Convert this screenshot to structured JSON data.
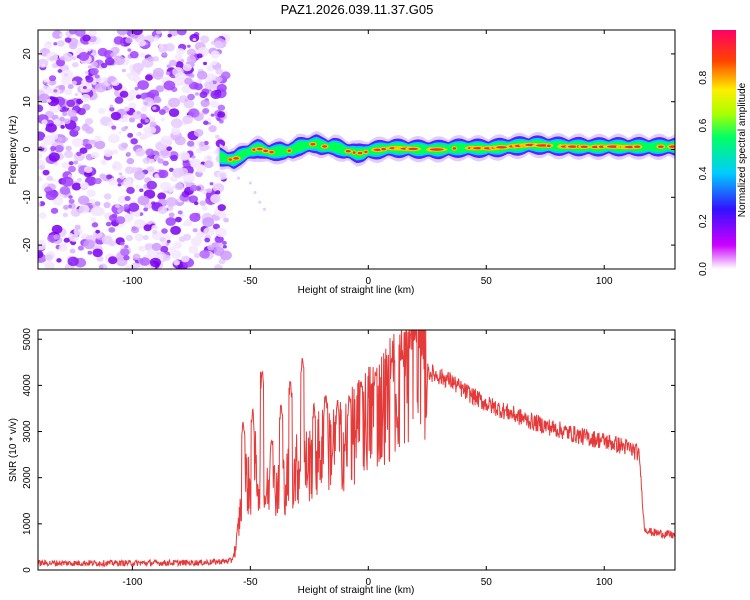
{
  "title": "PAZ1.2026.039.11.37.G05",
  "chart_data": [
    {
      "type": "heatmap",
      "xlabel": "Height of straight line (km)",
      "ylabel": "Frequency (Hz)",
      "xlim": [
        -140,
        130
      ],
      "ylim": [
        -25,
        25
      ],
      "xticks": [
        -100,
        -50,
        0,
        50,
        100
      ],
      "yticks": [
        -20,
        -10,
        0,
        10,
        20
      ],
      "noise_region_x": [
        -140,
        -63
      ],
      "ridge": {
        "x": [
          -63,
          -60,
          -57,
          -55,
          -52,
          -50,
          -47,
          -45,
          -42,
          -40,
          -37,
          -35,
          -32,
          -30,
          -27,
          -25,
          -22,
          -20,
          -17,
          -15,
          -12,
          -10,
          -7,
          -5,
          -2,
          0,
          5,
          10,
          15,
          20,
          25,
          30,
          35,
          40,
          45,
          50,
          55,
          60,
          65,
          70,
          75,
          80,
          85,
          90,
          95,
          100,
          105,
          110,
          115,
          120,
          125,
          130
        ],
        "freq": [
          -1.5,
          -2.0,
          -2.2,
          -1.5,
          -0.8,
          -0.3,
          0.2,
          0.0,
          -0.6,
          -0.5,
          -0.3,
          -0.4,
          -0.1,
          0.5,
          0.8,
          1.0,
          1.2,
          0.8,
          0.5,
          0.6,
          0.2,
          -0.2,
          -0.5,
          -0.8,
          -0.7,
          -0.3,
          0.0,
          0.3,
          0.2,
          0.1,
          0.0,
          0.0,
          0.2,
          0.3,
          0.3,
          0.2,
          0.4,
          0.6,
          0.8,
          1.0,
          0.8,
          0.7,
          0.6,
          0.6,
          0.5,
          0.6,
          0.6,
          0.5,
          0.6,
          0.5,
          0.6,
          0.6
        ]
      },
      "colorbar": {
        "label": "Normalized spectral amplitude",
        "ticks": [
          0.0,
          0.2,
          0.4,
          0.6,
          0.8
        ],
        "range": [
          0,
          1
        ],
        "colors": [
          "#ffffff",
          "#cc00ff",
          "#3311ff",
          "#00ccff",
          "#00ff66",
          "#aaff00",
          "#ffee00",
          "#ff4400",
          "#ff0066"
        ]
      }
    },
    {
      "type": "line",
      "xlabel": "Height of straight line (km)",
      "ylabel": "SNR (10 * v/v)",
      "xlim": [
        -140,
        130
      ],
      "ylim": [
        0,
        5200
      ],
      "xticks": [
        -100,
        -50,
        0,
        50,
        100
      ],
      "yticks": [
        0,
        1000,
        2000,
        3000,
        4000,
        5000
      ],
      "color": "#e53a3a",
      "envelope": {
        "x": [
          -140,
          -100,
          -70,
          -58,
          -56,
          -54,
          -52,
          -50,
          -48,
          -46,
          -44,
          -42,
          -40,
          -35,
          -30,
          -25,
          -20,
          -15,
          -10,
          -5,
          0,
          5,
          10,
          15,
          18,
          20,
          22,
          25,
          30,
          35,
          40,
          50,
          60,
          70,
          80,
          90,
          100,
          110,
          114,
          115,
          117,
          120,
          130
        ],
        "y": [
          150,
          150,
          160,
          200,
          500,
          1400,
          2000,
          1700,
          2300,
          1800,
          1600,
          1700,
          1800,
          1900,
          2200,
          2300,
          2600,
          2700,
          2700,
          3000,
          3300,
          3500,
          3800,
          4100,
          4400,
          4600,
          4500,
          4300,
          4200,
          4100,
          3900,
          3600,
          3400,
          3200,
          3050,
          2900,
          2800,
          2650,
          2550,
          2400,
          900,
          820,
          750
        ]
      },
      "spikes": {
        "x": [
          -53,
          -49,
          -45,
          -41,
          -37,
          -33,
          -28,
          -23,
          -18,
          -13,
          -8,
          -3,
          3,
          10,
          14,
          18,
          20,
          23
        ],
        "y": [
          3200,
          3500,
          4300,
          2800,
          3600,
          4100,
          4600,
          3600,
          3800,
          3700,
          3800,
          4100,
          4300,
          4600,
          4700,
          5000,
          5200,
          4800
        ]
      }
    }
  ]
}
